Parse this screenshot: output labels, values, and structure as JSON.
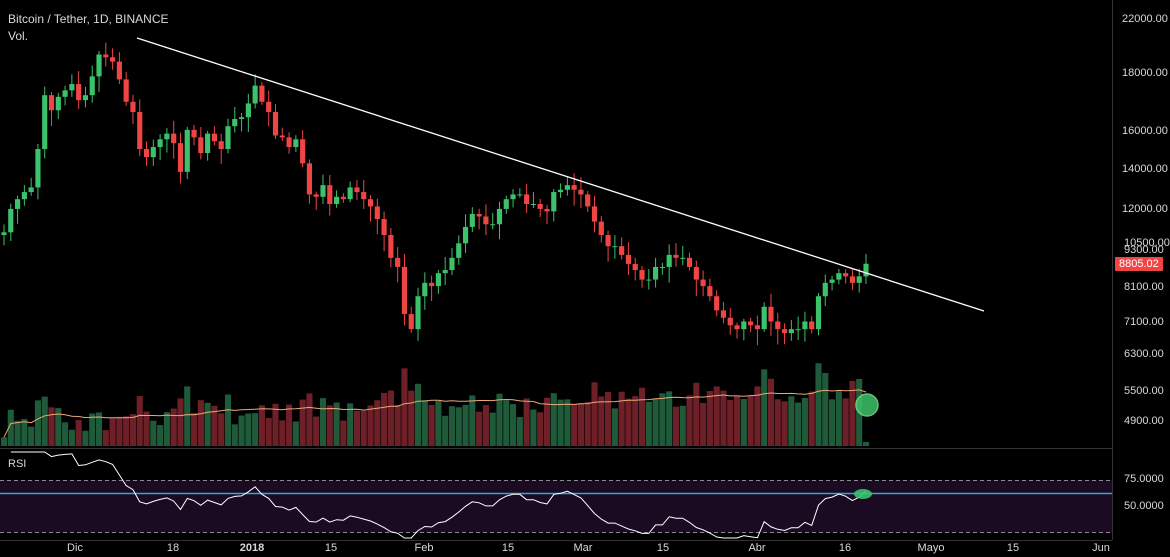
{
  "header": {
    "title": "Bitcoin / Tether, 1D, BINANCE",
    "vol_label": "Vol."
  },
  "rsi_panel": {
    "label": "RSI",
    "levels": [
      "75.0000",
      "50.0000"
    ]
  },
  "price_axis": {
    "labels": [
      "22000.00",
      "18000.00",
      "16000.00",
      "14000.00",
      "12000.00",
      "10500.00",
      "9300.00",
      "8100.00",
      "7100.00",
      "6300.00",
      "5500.00",
      "4900.00"
    ]
  },
  "current_price": "8805.02",
  "time_axis": {
    "labels": [
      "Dic",
      "18",
      "2018",
      "15",
      "Feb",
      "15",
      "Mar",
      "15",
      "Abr",
      "16",
      "Mayo",
      "15",
      "Jun"
    ]
  },
  "colors": {
    "up": "#3cc26a",
    "down": "#f04545",
    "trendline": "#ffffff",
    "vol_ma": "#e8a878",
    "rsi_line": "#ffffff",
    "rsi_band": "#1a0a22",
    "rsi_mid": "#3aa4d8",
    "highlight": "#5cd86a"
  },
  "chart_data": {
    "type": "candlestick",
    "title": "Bitcoin / Tether, 1D, BINANCE",
    "scale": "log",
    "ylim": [
      4400,
      23000
    ],
    "dates": [
      "2017-12-01",
      "2018-04-20"
    ],
    "close": [
      9900,
      10800,
      11200,
      11500,
      11700,
      13500,
      16500,
      15600,
      16400,
      16800,
      17200,
      16200,
      16500,
      17700,
      19200,
      19000,
      18700,
      17500,
      16100,
      15500,
      13500,
      13100,
      13600,
      14000,
      14300,
      13800,
      12400,
      14500,
      14100,
      13300,
      14300,
      13900,
      13500,
      14700,
      15100,
      15200,
      16000,
      17100,
      16100,
      15500,
      14200,
      14100,
      13600,
      14000,
      12800,
      11400,
      11300,
      11800,
      11000,
      11300,
      11200,
      11700,
      11500,
      11200,
      10900,
      10400,
      9800,
      9000,
      8700,
      7300,
      6900,
      7800,
      8200,
      8100,
      8500,
      8600,
      9000,
      9500,
      10100,
      10600,
      10500,
      10200,
      10200,
      10800,
      11200,
      11400,
      11400,
      11000,
      11000,
      10800,
      10700,
      11500,
      11600,
      11800,
      11600,
      11400,
      10900,
      10300,
      9800,
      9400,
      9400,
      9100,
      8800,
      8600,
      8300,
      8300,
      8700,
      8700,
      9100,
      9000,
      9000,
      8700,
      8300,
      8100,
      7800,
      7400,
      7200,
      7000,
      6900,
      7100,
      7000,
      6900,
      7500,
      7100,
      6900,
      6800,
      6900,
      6900,
      7100,
      6900,
      7800,
      8200,
      8300,
      8500,
      8400,
      8200,
      8400,
      8805
    ],
    "volume_ma_present": true,
    "rsi": {
      "period": 14,
      "upper": 70,
      "lower": 30
    }
  }
}
